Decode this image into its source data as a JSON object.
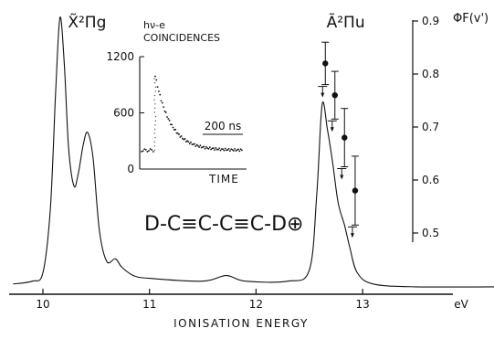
{
  "chart_data": [
    {
      "type": "line",
      "title": "",
      "xlabel": "IONISATION ENERGY",
      "x_unit": "eV",
      "xlim": [
        9.7,
        14.4
      ],
      "x_ticks": [
        10,
        11,
        12,
        13
      ],
      "ylabel": "",
      "series": [
        {
          "values": [
            {
              "x": 9.72,
              "y": 0.03
            },
            {
              "x": 9.9,
              "y": 0.04
            },
            {
              "x": 10.0,
              "y": 0.07
            },
            {
              "x": 10.07,
              "y": 0.3
            },
            {
              "x": 10.12,
              "y": 0.72
            },
            {
              "x": 10.16,
              "y": 0.98
            },
            {
              "x": 10.2,
              "y": 0.82
            },
            {
              "x": 10.24,
              "y": 0.52
            },
            {
              "x": 10.29,
              "y": 0.38
            },
            {
              "x": 10.33,
              "y": 0.42
            },
            {
              "x": 10.38,
              "y": 0.53
            },
            {
              "x": 10.42,
              "y": 0.57
            },
            {
              "x": 10.47,
              "y": 0.48
            },
            {
              "x": 10.53,
              "y": 0.22
            },
            {
              "x": 10.6,
              "y": 0.11
            },
            {
              "x": 10.68,
              "y": 0.12
            },
            {
              "x": 10.74,
              "y": 0.09
            },
            {
              "x": 10.85,
              "y": 0.06
            },
            {
              "x": 11.0,
              "y": 0.05
            },
            {
              "x": 11.5,
              "y": 0.04
            },
            {
              "x": 11.72,
              "y": 0.06
            },
            {
              "x": 11.9,
              "y": 0.04
            },
            {
              "x": 12.3,
              "y": 0.04
            },
            {
              "x": 12.5,
              "y": 0.08
            },
            {
              "x": 12.57,
              "y": 0.35
            },
            {
              "x": 12.62,
              "y": 0.67
            },
            {
              "x": 12.67,
              "y": 0.58
            },
            {
              "x": 12.72,
              "y": 0.46
            },
            {
              "x": 12.77,
              "y": 0.32
            },
            {
              "x": 12.83,
              "y": 0.24
            },
            {
              "x": 12.88,
              "y": 0.16
            },
            {
              "x": 12.95,
              "y": 0.07
            },
            {
              "x": 13.1,
              "y": 0.03
            },
            {
              "x": 13.5,
              "y": 0.02
            },
            {
              "x": 14.4,
              "y": 0.02
            }
          ]
        }
      ],
      "peak_labels": [
        {
          "x": 10.2,
          "text": "X̃²Πg"
        },
        {
          "x": 12.67,
          "text": "Ã²Πu"
        }
      ],
      "molecule_label": "D-C≡C-C≡C-D⊕"
    },
    {
      "type": "scatter",
      "ylabel": "ΦF(v')",
      "ylim": [
        0.48,
        0.9
      ],
      "y_ticks": [
        0.5,
        0.6,
        0.7,
        0.8,
        0.9
      ],
      "points": [
        {
          "x": 12.65,
          "y": 0.82,
          "err": 0.04
        },
        {
          "x": 12.74,
          "y": 0.76,
          "err": 0.045
        },
        {
          "x": 12.83,
          "y": 0.68,
          "err": 0.055
        },
        {
          "x": 12.93,
          "y": 0.58,
          "err": 0.065
        }
      ]
    },
    {
      "type": "scatter",
      "title": "hν-e COINCIDENCES",
      "xlabel": "TIME",
      "ylim": [
        0,
        1200
      ],
      "y_ticks": [
        0,
        600,
        1200
      ],
      "scale_bar_label": "200 ns",
      "decay": {
        "baseline": 200,
        "peak": 1000,
        "time_constant_ns": 75
      }
    }
  ],
  "unit_label": "eV"
}
